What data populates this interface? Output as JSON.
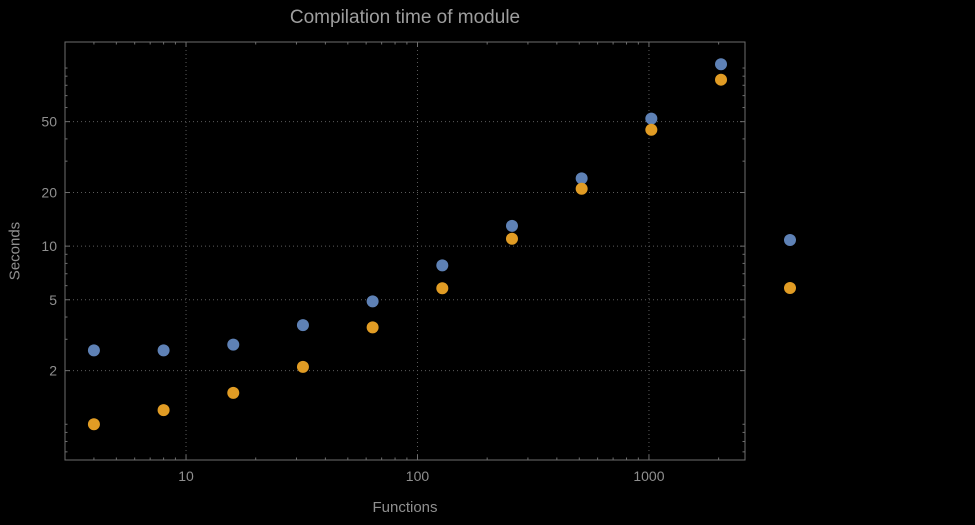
{
  "chart_data": {
    "type": "scatter",
    "title": "Compilation time of module",
    "xlabel": "Functions",
    "ylabel": "Seconds",
    "x_scale": "log",
    "y_scale": "log",
    "xlim": [
      3,
      2600
    ],
    "ylim": [
      0.63,
      140
    ],
    "x_ticks": [
      10,
      100,
      1000
    ],
    "y_ticks": [
      2,
      5,
      10,
      20,
      50
    ],
    "grid": "dotted",
    "background": "#000000",
    "frame_color": "#6e6e6e",
    "grid_color": "#5c5c5c",
    "label_color": "#8f8f8f",
    "title_color": "#9e9e9e",
    "x": [
      4,
      8,
      16,
      32,
      64,
      128,
      256,
      512,
      1024,
      2048
    ],
    "series": [
      {
        "name": "blue-series",
        "color": "#5e81b5",
        "values": [
          2.6,
          2.6,
          2.8,
          3.6,
          4.9,
          7.8,
          13,
          24,
          52,
          105
        ]
      },
      {
        "name": "orange-series",
        "color": "#e19c24",
        "values": [
          1.0,
          1.2,
          1.5,
          2.1,
          3.5,
          5.8,
          11,
          21,
          45,
          86
        ]
      }
    ],
    "legend": {
      "position": "right",
      "markers": [
        {
          "series": "blue-series",
          "color": "#5e81b5"
        },
        {
          "series": "orange-series",
          "color": "#e19c24"
        }
      ]
    }
  }
}
